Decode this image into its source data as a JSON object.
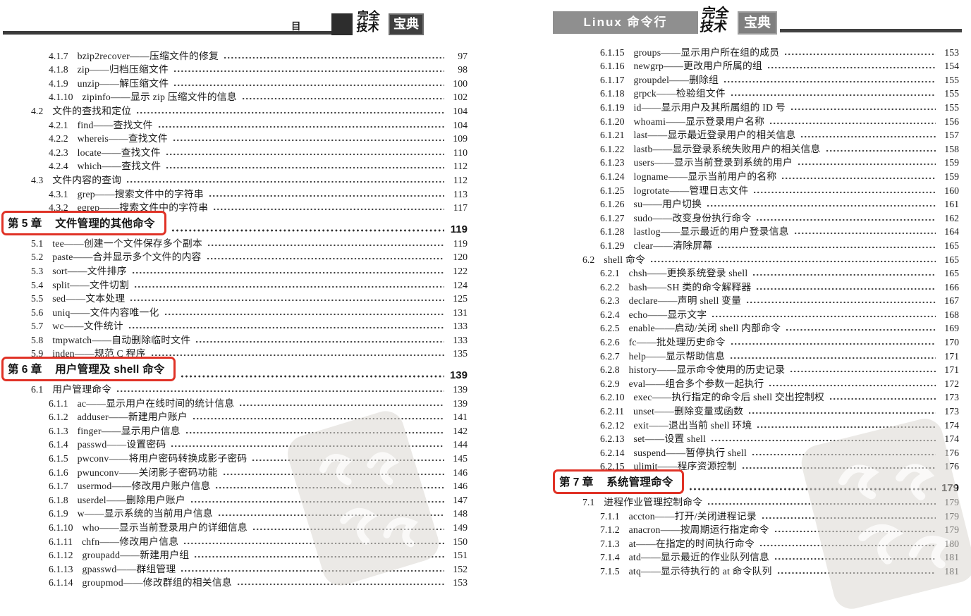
{
  "colors": {
    "chapter_box_red": "#e03226",
    "banner_gray": "#8f8f8f",
    "header_dark": "#3a3a3a"
  },
  "left_page": {
    "header": {
      "title": "目 录",
      "brand_line1": "完全",
      "brand_line2": "技术",
      "brand_badge": "宝典"
    },
    "entries": [
      {
        "level": 3,
        "num": "4.1.7",
        "title": "bzip2recover——压缩文件的修复",
        "page": "97"
      },
      {
        "level": 3,
        "num": "4.1.8",
        "title": "zip——归档压缩文件",
        "page": "98"
      },
      {
        "level": 3,
        "num": "4.1.9",
        "title": "unzip——解压缩文件",
        "page": "100"
      },
      {
        "level": 3,
        "num": "4.1.10",
        "title": "zipinfo——显示 zip 压缩文件的信息",
        "page": "102"
      },
      {
        "level": 2,
        "num": "4.2",
        "title": "文件的查找和定位",
        "page": "104"
      },
      {
        "level": 3,
        "num": "4.2.1",
        "title": "find——查找文件",
        "page": "104"
      },
      {
        "level": 3,
        "num": "4.2.2",
        "title": "whereis——查找文件",
        "page": "109"
      },
      {
        "level": 3,
        "num": "4.2.3",
        "title": "locate——查找文件",
        "page": "110"
      },
      {
        "level": 3,
        "num": "4.2.4",
        "title": "which——查找文件",
        "page": "112"
      },
      {
        "level": 2,
        "num": "4.3",
        "title": "文件内容的查询",
        "page": "112"
      },
      {
        "level": 3,
        "num": "4.3.1",
        "title": "grep——搜索文件中的字符串",
        "page": "113"
      },
      {
        "level": 3,
        "num": "4.3.2",
        "title": "egrep——搜索文件中的字符串",
        "page": "117"
      },
      {
        "level": 1,
        "num": "第 5 章",
        "title": "文件管理的其他命令",
        "page": "119"
      },
      {
        "level": 2,
        "num": "5.1",
        "title": "tee——创建一个文件保存多个副本",
        "page": "119"
      },
      {
        "level": 2,
        "num": "5.2",
        "title": "paste——合并显示多个文件的内容",
        "page": "120"
      },
      {
        "level": 2,
        "num": "5.3",
        "title": "sort——文件排序",
        "page": "122"
      },
      {
        "level": 2,
        "num": "5.4",
        "title": "split——文件切割",
        "page": "124"
      },
      {
        "level": 2,
        "num": "5.5",
        "title": "sed——文本处理",
        "page": "125"
      },
      {
        "level": 2,
        "num": "5.6",
        "title": "uniq——文件内容唯一化",
        "page": "131"
      },
      {
        "level": 2,
        "num": "5.7",
        "title": "wc——文件统计",
        "page": "133"
      },
      {
        "level": 2,
        "num": "5.8",
        "title": "tmpwatch——自动删除临时文件",
        "page": "133"
      },
      {
        "level": 2,
        "num": "5.9",
        "title": "inden——规范 C 程序",
        "page": "135"
      },
      {
        "level": 1,
        "num": "第 6 章",
        "title": "用户管理及 shell 命令",
        "page": "139"
      },
      {
        "level": 2,
        "num": "6.1",
        "title": "用户管理命令",
        "page": "139"
      },
      {
        "level": 3,
        "num": "6.1.1",
        "title": "ac——显示用户在线时间的统计信息",
        "page": "139"
      },
      {
        "level": 3,
        "num": "6.1.2",
        "title": "adduser——新建用户账户",
        "page": "141"
      },
      {
        "level": 3,
        "num": "6.1.3",
        "title": "finger——显示用户信息",
        "page": "142"
      },
      {
        "level": 3,
        "num": "6.1.4",
        "title": "passwd——设置密码",
        "page": "144"
      },
      {
        "level": 3,
        "num": "6.1.5",
        "title": "pwconv——将用户密码转换成影子密码",
        "page": "145"
      },
      {
        "level": 3,
        "num": "6.1.6",
        "title": "pwunconv——关闭影子密码功能",
        "page": "146"
      },
      {
        "level": 3,
        "num": "6.1.7",
        "title": "usermod——修改用户账户信息",
        "page": "146"
      },
      {
        "level": 3,
        "num": "6.1.8",
        "title": "userdel——删除用户账户",
        "page": "147"
      },
      {
        "level": 3,
        "num": "6.1.9",
        "title": "w——显示系统的当前用户信息",
        "page": "148"
      },
      {
        "level": 3,
        "num": "6.1.10",
        "title": "who——显示当前登录用户的详细信息",
        "page": "149"
      },
      {
        "level": 3,
        "num": "6.1.11",
        "title": "chfn——修改用户信息",
        "page": "150"
      },
      {
        "level": 3,
        "num": "6.1.12",
        "title": "groupadd——新建用户组",
        "page": "151"
      },
      {
        "level": 3,
        "num": "6.1.13",
        "title": "gpasswd——群组管理",
        "page": "152"
      },
      {
        "level": 3,
        "num": "6.1.14",
        "title": "groupmod——修改群组的相关信息",
        "page": "153"
      }
    ]
  },
  "right_page": {
    "header": {
      "banner": "Linux 命令行",
      "brand_line1": "完全",
      "brand_line2": "技术",
      "brand_badge": "宝典"
    },
    "entries": [
      {
        "level": 3,
        "num": "6.1.15",
        "title": "groups——显示用户所在组的成员",
        "page": "153"
      },
      {
        "level": 3,
        "num": "6.1.16",
        "title": "newgrp——更改用户所属的组",
        "page": "154"
      },
      {
        "level": 3,
        "num": "6.1.17",
        "title": "groupdel——删除组",
        "page": "155"
      },
      {
        "level": 3,
        "num": "6.1.18",
        "title": "grpck——检验组文件",
        "page": "155"
      },
      {
        "level": 3,
        "num": "6.1.19",
        "title": "id——显示用户及其所属组的 ID 号",
        "page": "155"
      },
      {
        "level": 3,
        "num": "6.1.20",
        "title": "whoami——显示登录用户名称",
        "page": "156"
      },
      {
        "level": 3,
        "num": "6.1.21",
        "title": "last——显示最近登录用户的相关信息",
        "page": "157"
      },
      {
        "level": 3,
        "num": "6.1.22",
        "title": "lastb——显示登录系统失败用户的相关信息",
        "page": "158"
      },
      {
        "level": 3,
        "num": "6.1.23",
        "title": "users——显示当前登录到系统的用户",
        "page": "159"
      },
      {
        "level": 3,
        "num": "6.1.24",
        "title": "logname——显示当前用户的名称",
        "page": "159"
      },
      {
        "level": 3,
        "num": "6.1.25",
        "title": "logrotate——管理日志文件",
        "page": "160"
      },
      {
        "level": 3,
        "num": "6.1.26",
        "title": "su——用户切换",
        "page": "161"
      },
      {
        "level": 3,
        "num": "6.1.27",
        "title": "sudo——改变身份执行命令",
        "page": "162"
      },
      {
        "level": 3,
        "num": "6.1.28",
        "title": "lastlog——显示最近的用户登录信息",
        "page": "164"
      },
      {
        "level": 3,
        "num": "6.1.29",
        "title": "clear——清除屏幕",
        "page": "165"
      },
      {
        "level": 2,
        "num": "6.2",
        "title": "shell 命令",
        "page": "165"
      },
      {
        "level": 3,
        "num": "6.2.1",
        "title": "chsh——更换系统登录 shell",
        "page": "165"
      },
      {
        "level": 3,
        "num": "6.2.2",
        "title": "bash——SH 类的命令解释器",
        "page": "166"
      },
      {
        "level": 3,
        "num": "6.2.3",
        "title": "declare——声明 shell 变量",
        "page": "167"
      },
      {
        "level": 3,
        "num": "6.2.4",
        "title": "echo——显示文字",
        "page": "168"
      },
      {
        "level": 3,
        "num": "6.2.5",
        "title": "enable——启动/关闭 shell 内部命令",
        "page": "169"
      },
      {
        "level": 3,
        "num": "6.2.6",
        "title": "fc——批处理历史命令",
        "page": "170"
      },
      {
        "level": 3,
        "num": "6.2.7",
        "title": "help——显示帮助信息",
        "page": "171"
      },
      {
        "level": 3,
        "num": "6.2.8",
        "title": "history——显示命令使用的历史记录",
        "page": "171"
      },
      {
        "level": 3,
        "num": "6.2.9",
        "title": "eval——组合多个参数一起执行",
        "page": "172"
      },
      {
        "level": 3,
        "num": "6.2.10",
        "title": "exec——执行指定的命令后 shell 交出控制权",
        "page": "173"
      },
      {
        "level": 3,
        "num": "6.2.11",
        "title": "unset——删除变量或函数",
        "page": "173"
      },
      {
        "level": 3,
        "num": "6.2.12",
        "title": "exit——退出当前 shell 环境",
        "page": "174"
      },
      {
        "level": 3,
        "num": "6.2.13",
        "title": "set——设置 shell",
        "page": "174"
      },
      {
        "level": 3,
        "num": "6.2.14",
        "title": "suspend——暂停执行 shell",
        "page": "176"
      },
      {
        "level": 3,
        "num": "6.2.15",
        "title": "ulimit——程序资源控制",
        "page": "176"
      },
      {
        "level": 1,
        "num": "第 7 章",
        "title": "系统管理命令",
        "page": "179"
      },
      {
        "level": 2,
        "num": "7.1",
        "title": "进程作业管理控制命令",
        "page": "179"
      },
      {
        "level": 3,
        "num": "7.1.1",
        "title": "accton——打开/关闭进程记录",
        "page": "179"
      },
      {
        "level": 3,
        "num": "7.1.2",
        "title": "anacron——按周期运行指定命令",
        "page": "179"
      },
      {
        "level": 3,
        "num": "7.1.3",
        "title": "at——在指定的时间执行命令",
        "page": "180"
      },
      {
        "level": 3,
        "num": "7.1.4",
        "title": "atd——显示最近的作业队列信息",
        "page": "181"
      },
      {
        "level": 3,
        "num": "7.1.5",
        "title": "atq——显示待执行的 at 命令队列",
        "page": "181"
      }
    ]
  }
}
